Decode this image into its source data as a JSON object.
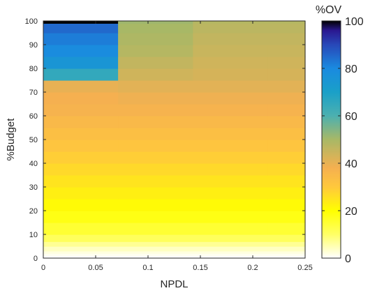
{
  "chart_data": {
    "type": "heatmap",
    "xlabel": "NPDL",
    "ylabel": "%Budget",
    "xlim": [
      0,
      0.25
    ],
    "ylim": [
      0,
      100
    ],
    "x_ticks": [
      0,
      0.05,
      0.1,
      0.15,
      0.2,
      0.25
    ],
    "x_tick_labels": [
      "0",
      "0.05",
      "0.1",
      "0.15",
      "0.2",
      "0.25"
    ],
    "y_ticks": [
      0,
      10,
      20,
      30,
      40,
      50,
      60,
      70,
      80,
      90,
      100
    ],
    "y_tick_labels": [
      "0",
      "10",
      "20",
      "30",
      "40",
      "50",
      "60",
      "70",
      "80",
      "90",
      "100"
    ],
    "colorbar": {
      "title": "%OV",
      "range": [
        0,
        100
      ],
      "ticks": [
        0,
        20,
        40,
        60,
        80,
        100
      ],
      "tick_labels": [
        "0",
        "20",
        "40",
        "60",
        "80",
        "100"
      ],
      "colormap": [
        {
          "v": 0,
          "color": "#ffffff"
        },
        {
          "v": 10,
          "color": "#ffff66"
        },
        {
          "v": 20,
          "color": "#ffff00"
        },
        {
          "v": 30,
          "color": "#ffc83c"
        },
        {
          "v": 38,
          "color": "#f5b050"
        },
        {
          "v": 50,
          "color": "#a8b866"
        },
        {
          "v": 60,
          "color": "#4cb0b0"
        },
        {
          "v": 70,
          "color": "#1aa0c8"
        },
        {
          "v": 80,
          "color": "#1a8ae0"
        },
        {
          "v": 90,
          "color": "#2848b8"
        },
        {
          "v": 96,
          "color": "#2a1890"
        },
        {
          "v": 100,
          "color": "#000000"
        }
      ]
    },
    "npdl_columns": [
      {
        "x0": 0,
        "x1": 0.0714
      },
      {
        "x0": 0.0714,
        "x1": 0.1429
      },
      {
        "x0": 0.1429,
        "x1": 0.2143
      },
      {
        "x0": 0.2143,
        "x1": 0.25
      }
    ],
    "budget_levels": [
      {
        "y0": 0,
        "y1": 1,
        "ov": [
          0,
          0,
          0,
          0
        ]
      },
      {
        "y0": 1,
        "y1": 2,
        "ov": [
          1,
          1,
          1,
          1
        ]
      },
      {
        "y0": 2,
        "y1": 3,
        "ov": [
          2,
          2,
          2,
          2
        ]
      },
      {
        "y0": 3,
        "y1": 5,
        "ov": [
          4,
          4,
          4,
          4
        ]
      },
      {
        "y0": 5,
        "y1": 7,
        "ov": [
          7,
          7,
          7,
          7
        ]
      },
      {
        "y0": 7,
        "y1": 10,
        "ov": [
          11,
          11,
          11,
          11
        ]
      },
      {
        "y0": 10,
        "y1": 15,
        "ov": [
          15,
          15,
          15,
          15
        ]
      },
      {
        "y0": 15,
        "y1": 20,
        "ov": [
          18,
          18,
          18,
          18
        ]
      },
      {
        "y0": 20,
        "y1": 25,
        "ov": [
          21,
          21,
          21,
          21
        ]
      },
      {
        "y0": 25,
        "y1": 30,
        "ov": [
          23,
          23,
          23,
          23
        ]
      },
      {
        "y0": 30,
        "y1": 35,
        "ov": [
          25,
          25,
          25,
          25
        ]
      },
      {
        "y0": 35,
        "y1": 40,
        "ov": [
          27,
          27,
          27,
          27
        ]
      },
      {
        "y0": 40,
        "y1": 45,
        "ov": [
          29,
          29,
          29,
          29
        ]
      },
      {
        "y0": 45,
        "y1": 50,
        "ov": [
          31,
          31,
          31,
          31
        ]
      },
      {
        "y0": 50,
        "y1": 55,
        "ov": [
          33,
          33,
          33,
          33
        ]
      },
      {
        "y0": 55,
        "y1": 60,
        "ov": [
          35,
          35,
          35,
          35
        ]
      },
      {
        "y0": 60,
        "y1": 65,
        "ov": [
          37,
          37,
          37,
          37
        ]
      },
      {
        "y0": 65,
        "y1": 70,
        "ov": [
          38,
          39,
          39,
          39
        ]
      },
      {
        "y0": 70,
        "y1": 75,
        "ov": [
          40,
          41,
          41,
          41
        ]
      },
      {
        "y0": 75,
        "y1": 80,
        "ov": [
          65,
          44,
          43,
          43
        ]
      },
      {
        "y0": 80,
        "y1": 85,
        "ov": [
          75,
          46,
          44,
          44
        ]
      },
      {
        "y0": 85,
        "y1": 90,
        "ov": [
          79,
          48,
          45,
          45
        ]
      },
      {
        "y0": 90,
        "y1": 95,
        "ov": [
          82,
          49,
          46,
          46
        ]
      },
      {
        "y0": 95,
        "y1": 99,
        "ov": [
          85,
          50,
          47,
          47
        ]
      },
      {
        "y0": 99,
        "y1": 100,
        "ov": [
          100,
          51,
          48,
          48
        ]
      }
    ]
  }
}
